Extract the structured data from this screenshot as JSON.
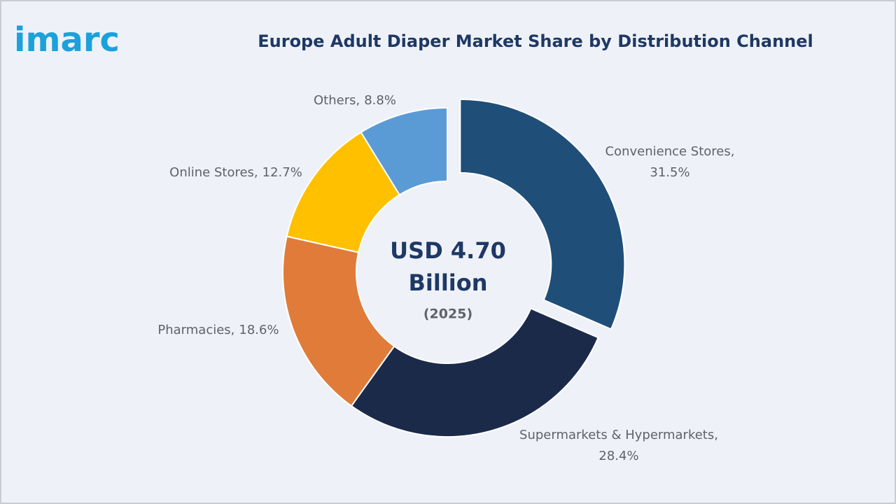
{
  "logo": "imarc",
  "chart_data": {
    "type": "donut",
    "title": "Europe Adult Diaper Market Share by Distribution Channel",
    "categories": [
      "Convenience Stores,",
      "Supermarkets & Hypermarkets,",
      "Pharmacies,",
      "Online Stores,",
      "Others,"
    ],
    "values": [
      31.5,
      28.4,
      18.6,
      12.7,
      8.8
    ],
    "value_labels": [
      "31.5%",
      "28.4%",
      "18.6%",
      "12.7%",
      "8.8%"
    ],
    "colors": [
      "#1f4e79",
      "#1c2a4a",
      "#e07b39",
      "#ffc000",
      "#5b9bd5"
    ],
    "center_text": [
      "USD 4.70",
      "Billion",
      "(2025)"
    ]
  }
}
